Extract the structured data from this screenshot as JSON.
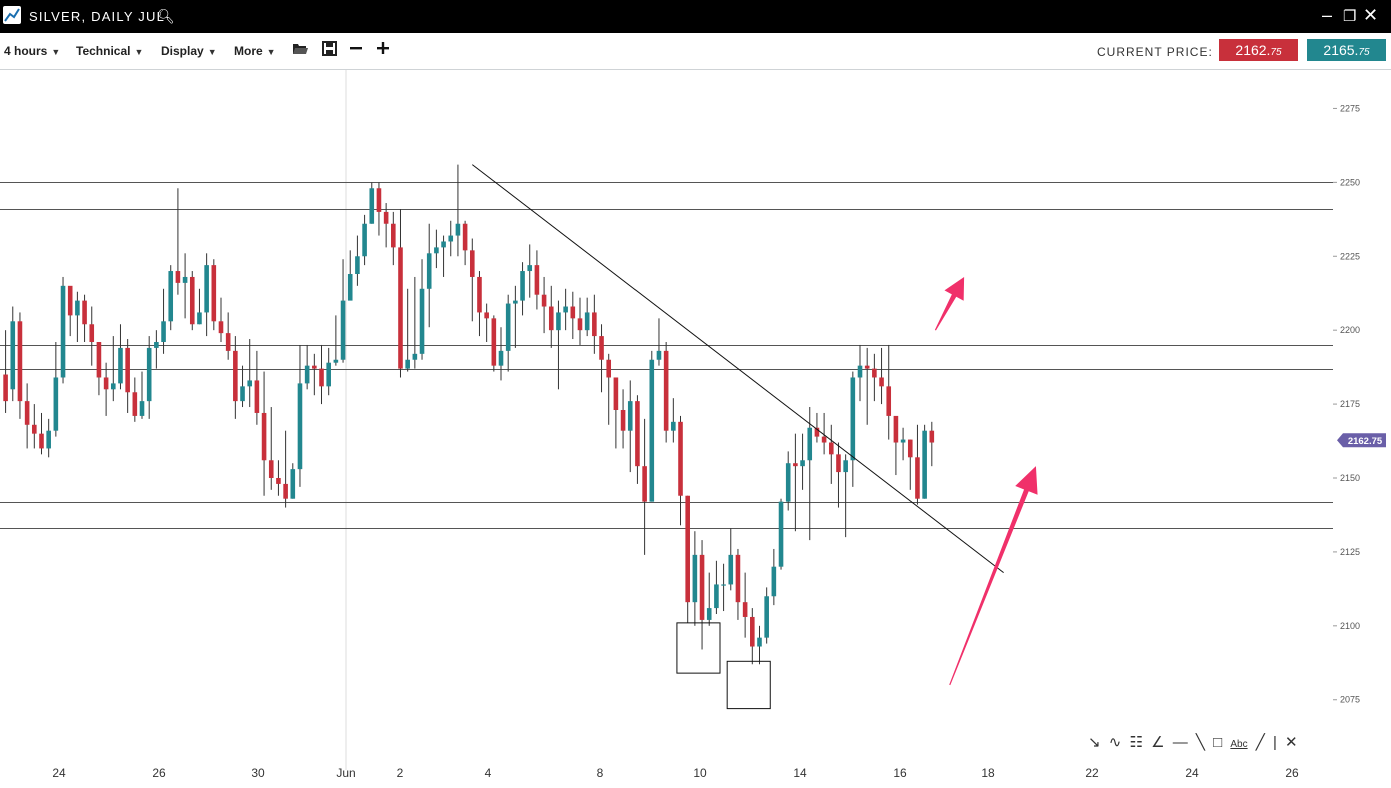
{
  "window": {
    "title": "SILVER, DAILY JUL",
    "icons": [
      "chart-logo-icon",
      "search-icon",
      "minimize-icon",
      "popout-icon",
      "close-icon"
    ]
  },
  "toolbar": {
    "timeframe": "4 hours",
    "technical": "Technical",
    "display": "Display",
    "more": "More",
    "icons": [
      "open-folder-icon",
      "save-icon",
      "zoom-out-icon",
      "zoom-in-icon"
    ],
    "current_price_label": "CURRENT PRICE:",
    "bid_main": "2162.",
    "bid_small": "75",
    "ask_main": "2165.",
    "ask_small": "75"
  },
  "colors": {
    "up": "#22878f",
    "down": "#c8303b",
    "arrow": "#f0306a",
    "price_tag": "#6a5fa8"
  },
  "drawing_tools": [
    "arrow-tool-icon",
    "curve-tool-icon",
    "fib-tool-icon",
    "fan-tool-icon",
    "hline-tool-icon",
    "ray-tool-icon",
    "rect-tool-icon",
    "text-tool-icon",
    "line-tool-icon",
    "close-icon"
  ],
  "chart_data": {
    "type": "candlestick",
    "title": "",
    "xlabel": "",
    "ylabel": "",
    "ylim": [
      2058,
      2288
    ],
    "y_ticks": [
      2075,
      2100,
      2125,
      2150,
      2175,
      2200,
      2225,
      2250,
      2275
    ],
    "x_ticks": [
      "24",
      "26",
      "30",
      "Jun",
      "2",
      "4",
      "8",
      "10",
      "14",
      "16",
      "18",
      "22",
      "24",
      "26"
    ],
    "last_price_tag": "2162.75",
    "grid": false,
    "horizontal_levels": [
      2250,
      2241,
      2195,
      2187,
      2142,
      2133
    ],
    "trendline": {
      "from": {
        "bar": 65,
        "value": 2256
      },
      "to": {
        "bar": 139,
        "value": 2118
      }
    },
    "boxes": [
      {
        "from_bar": 94,
        "to_bar": 100,
        "low": 2084,
        "high": 2101
      },
      {
        "from_bar": 101,
        "to_bar": 107,
        "low": 2072,
        "high": 2088
      }
    ],
    "arrows": [
      {
        "from": {
          "bar": 130,
          "value": 2200
        },
        "to": {
          "bar": 134,
          "value": 2218
        }
      },
      {
        "from": {
          "bar": 132,
          "value": 2080
        },
        "to": {
          "bar": 144,
          "value": 2154
        }
      }
    ],
    "candles": [
      [
        2185,
        2176,
        2200,
        2172
      ],
      [
        2180,
        2203,
        2208,
        2176
      ],
      [
        2203,
        2176,
        2206,
        2170
      ],
      [
        2176,
        2168,
        2182,
        2160
      ],
      [
        2168,
        2165,
        2175,
        2160
      ],
      [
        2165,
        2160,
        2172,
        2158
      ],
      [
        2160,
        2166,
        2170,
        2157
      ],
      [
        2166,
        2184,
        2196,
        2164
      ],
      [
        2184,
        2215,
        2218,
        2182
      ],
      [
        2215,
        2205,
        2214,
        2198
      ],
      [
        2205,
        2210,
        2213,
        2196
      ],
      [
        2210,
        2202,
        2212,
        2196
      ],
      [
        2202,
        2196,
        2208,
        2188
      ],
      [
        2196,
        2184,
        2196,
        2178
      ],
      [
        2184,
        2180,
        2189,
        2171
      ],
      [
        2180,
        2182,
        2198,
        2176
      ],
      [
        2182,
        2194,
        2202,
        2180
      ],
      [
        2194,
        2179,
        2197,
        2172
      ],
      [
        2179,
        2171,
        2184,
        2169
      ],
      [
        2171,
        2176,
        2186,
        2170
      ],
      [
        2176,
        2194,
        2198,
        2170
      ],
      [
        2194,
        2196,
        2200,
        2187
      ],
      [
        2196,
        2203,
        2214,
        2192
      ],
      [
        2203,
        2220,
        2222,
        2200
      ],
      [
        2220,
        2216,
        2248,
        2212
      ],
      [
        2216,
        2218,
        2226,
        2204
      ],
      [
        2218,
        2202,
        2220,
        2200
      ],
      [
        2202,
        2206,
        2214,
        2202
      ],
      [
        2206,
        2222,
        2226,
        2198
      ],
      [
        2222,
        2203,
        2224,
        2200
      ],
      [
        2203,
        2199,
        2211,
        2196
      ],
      [
        2199,
        2193,
        2206,
        2190
      ],
      [
        2193,
        2176,
        2198,
        2170
      ],
      [
        2176,
        2181,
        2188,
        2174
      ],
      [
        2181,
        2183,
        2197,
        2174
      ],
      [
        2183,
        2172,
        2193,
        2168
      ],
      [
        2172,
        2156,
        2186,
        2144
      ],
      [
        2156,
        2150,
        2174,
        2146
      ],
      [
        2150,
        2148,
        2156,
        2144
      ],
      [
        2148,
        2143,
        2166,
        2140
      ],
      [
        2143,
        2153,
        2155,
        2143
      ],
      [
        2153,
        2182,
        2195,
        2147
      ],
      [
        2182,
        2188,
        2195,
        2180
      ],
      [
        2188,
        2187,
        2192,
        2178
      ],
      [
        2187,
        2181,
        2195,
        2175
      ],
      [
        2181,
        2189,
        2194,
        2178
      ],
      [
        2189,
        2190,
        2205,
        2188
      ],
      [
        2190,
        2210,
        2224,
        2189
      ],
      [
        2210,
        2219,
        2227,
        2212
      ],
      [
        2219,
        2225,
        2232,
        2215
      ],
      [
        2225,
        2236,
        2239,
        2222
      ],
      [
        2236,
        2248,
        2250,
        2236
      ],
      [
        2248,
        2240,
        2250,
        2232
      ],
      [
        2240,
        2236,
        2243,
        2228
      ],
      [
        2236,
        2228,
        2240,
        2222
      ],
      [
        2228,
        2187,
        2241,
        2184
      ],
      [
        2187,
        2190,
        2214,
        2186
      ],
      [
        2190,
        2192,
        2218,
        2187
      ],
      [
        2192,
        2214,
        2224,
        2190
      ],
      [
        2214,
        2226,
        2236,
        2201
      ],
      [
        2226,
        2228,
        2234,
        2221
      ],
      [
        2228,
        2230,
        2232,
        2218
      ],
      [
        2230,
        2232,
        2237,
        2225
      ],
      [
        2232,
        2236,
        2256,
        2225
      ],
      [
        2236,
        2227,
        2237,
        2222
      ],
      [
        2227,
        2218,
        2231,
        2203
      ],
      [
        2218,
        2206,
        2220,
        2198
      ],
      [
        2206,
        2204,
        2209,
        2196
      ],
      [
        2204,
        2188,
        2205,
        2186
      ],
      [
        2188,
        2193,
        2201,
        2183
      ],
      [
        2193,
        2209,
        2212,
        2186
      ],
      [
        2209,
        2210,
        2215,
        2194
      ],
      [
        2210,
        2220,
        2223,
        2205
      ],
      [
        2220,
        2222,
        2229,
        2211
      ],
      [
        2222,
        2212,
        2227,
        2207
      ],
      [
        2212,
        2208,
        2218,
        2199
      ],
      [
        2208,
        2200,
        2215,
        2194
      ],
      [
        2200,
        2206,
        2210,
        2180
      ],
      [
        2206,
        2208,
        2214,
        2200
      ],
      [
        2208,
        2204,
        2213,
        2197
      ],
      [
        2204,
        2200,
        2211,
        2195
      ],
      [
        2200,
        2206,
        2211,
        2198
      ],
      [
        2206,
        2198,
        2212,
        2192
      ],
      [
        2198,
        2190,
        2202,
        2179
      ],
      [
        2190,
        2184,
        2192,
        2168
      ],
      [
        2184,
        2173,
        2181,
        2160
      ],
      [
        2173,
        2166,
        2180,
        2160
      ],
      [
        2166,
        2176,
        2183,
        2152
      ],
      [
        2176,
        2154,
        2178,
        2148
      ],
      [
        2154,
        2142,
        2170,
        2124
      ],
      [
        2142,
        2190,
        2193,
        2142
      ],
      [
        2190,
        2193,
        2204,
        2188
      ],
      [
        2193,
        2166,
        2196,
        2162
      ],
      [
        2166,
        2169,
        2177,
        2162
      ],
      [
        2169,
        2144,
        2171,
        2134
      ],
      [
        2144,
        2108,
        2144,
        2101
      ],
      [
        2108,
        2124,
        2132,
        2100
      ],
      [
        2124,
        2102,
        2129,
        2092
      ],
      [
        2102,
        2106,
        2118,
        2100
      ],
      [
        2106,
        2114,
        2122,
        2104
      ],
      [
        2114,
        2114,
        2121,
        2105
      ],
      [
        2114,
        2124,
        2133,
        2112
      ],
      [
        2124,
        2108,
        2126,
        2102
      ],
      [
        2108,
        2103,
        2118,
        2096
      ],
      [
        2103,
        2093,
        2106,
        2087
      ],
      [
        2093,
        2096,
        2100,
        2087
      ],
      [
        2096,
        2110,
        2113,
        2094
      ],
      [
        2110,
        2120,
        2126,
        2107
      ],
      [
        2120,
        2142,
        2143,
        2119
      ],
      [
        2142,
        2155,
        2159,
        2139
      ],
      [
        2155,
        2154,
        2165,
        2132
      ],
      [
        2154,
        2156,
        2165,
        2146
      ],
      [
        2156,
        2167,
        2174,
        2129
      ],
      [
        2167,
        2164,
        2172,
        2162
      ],
      [
        2164,
        2162,
        2172,
        2158
      ],
      [
        2162,
        2158,
        2168,
        2148
      ],
      [
        2158,
        2152,
        2162,
        2140
      ],
      [
        2152,
        2156,
        2158,
        2130
      ],
      [
        2156,
        2184,
        2186,
        2147
      ],
      [
        2184,
        2188,
        2195,
        2176
      ],
      [
        2188,
        2187,
        2194,
        2168
      ],
      [
        2187,
        2184,
        2192,
        2176
      ],
      [
        2184,
        2181,
        2194,
        2175
      ],
      [
        2181,
        2171,
        2195,
        2163
      ],
      [
        2171,
        2162,
        2167,
        2151
      ],
      [
        2162,
        2163,
        2167,
        2156
      ],
      [
        2163,
        2157,
        2163,
        2146
      ],
      [
        2157,
        2143,
        2168,
        2141
      ],
      [
        2143,
        2166,
        2168,
        2143
      ],
      [
        2166,
        2162,
        2169,
        2154
      ]
    ]
  }
}
